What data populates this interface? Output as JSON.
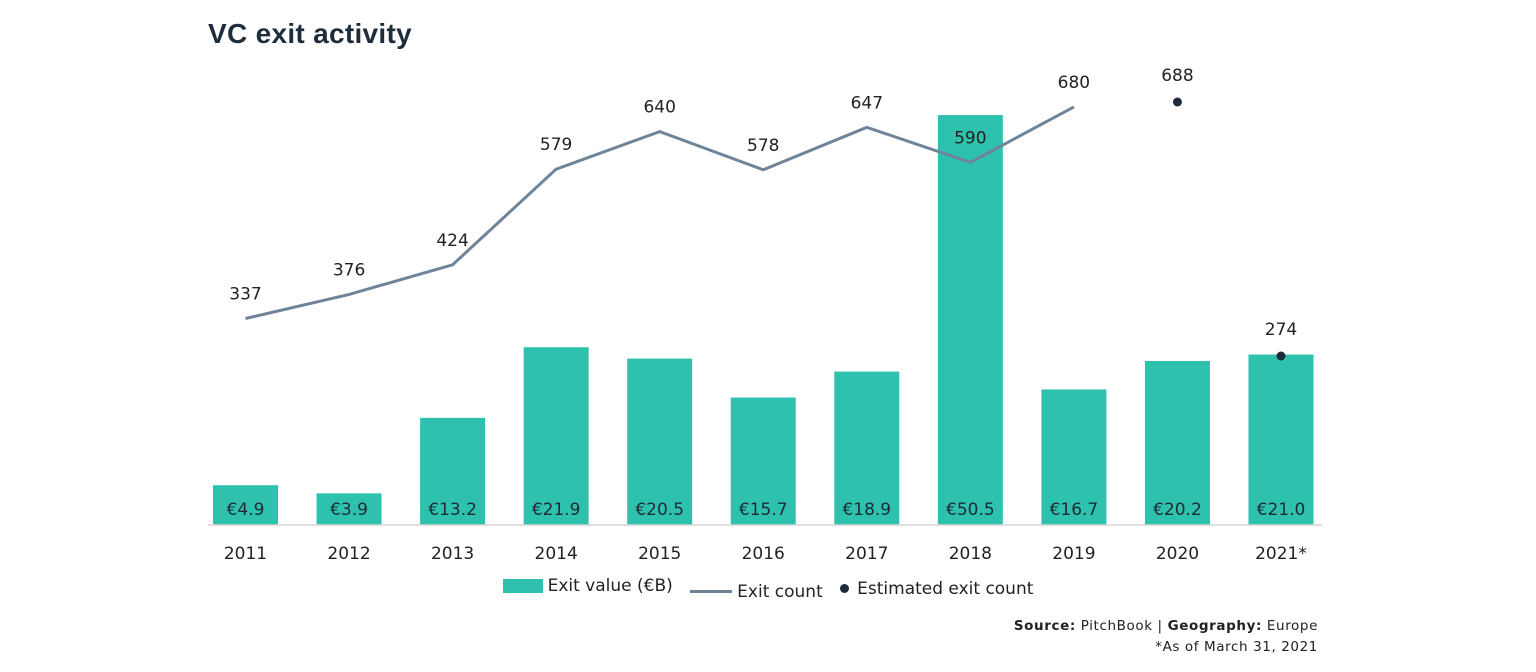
{
  "title": "VC exit activity",
  "colors": {
    "bar": "#2ec1ad",
    "line": "#6f8499",
    "dot": "#1d2b38",
    "axis": "#d0d0d0"
  },
  "chart_data": {
    "type": "bar",
    "categories": [
      "2011",
      "2012",
      "2013",
      "2014",
      "2015",
      "2016",
      "2017",
      "2018",
      "2019",
      "2020",
      "2021*"
    ],
    "series": [
      {
        "name": "Exit value (€B)",
        "type": "bar",
        "values": [
          4.9,
          3.9,
          13.2,
          21.9,
          20.5,
          15.7,
          18.9,
          50.5,
          16.7,
          20.2,
          21.0
        ],
        "labels": [
          "€4.9",
          "€3.9",
          "€13.2",
          "€21.9",
          "€20.5",
          "€15.7",
          "€18.9",
          "€50.5",
          "€16.7",
          "€20.2",
          "€21.0"
        ]
      },
      {
        "name": "Exit count",
        "type": "line",
        "values": [
          337,
          376,
          424,
          579,
          640,
          578,
          647,
          590,
          680,
          null,
          null
        ]
      },
      {
        "name": "Estimated exit count",
        "type": "scatter",
        "values": [
          null,
          null,
          null,
          null,
          null,
          null,
          null,
          null,
          null,
          688,
          274
        ]
      }
    ],
    "bar_ylim": [
      0,
      51
    ],
    "count_ylim": [
      0,
      700
    ],
    "legend": "bottom-center",
    "grid": false
  },
  "legend": {
    "bar_label": "Exit value (€B)",
    "line_label": "Exit count",
    "dot_label": "Estimated exit count"
  },
  "source": {
    "source_key": "Source:",
    "source_val": "PitchBook",
    "sep": "|",
    "geo_key": "Geography:",
    "geo_val": "Europe",
    "note": "*As of March 31, 2021"
  }
}
